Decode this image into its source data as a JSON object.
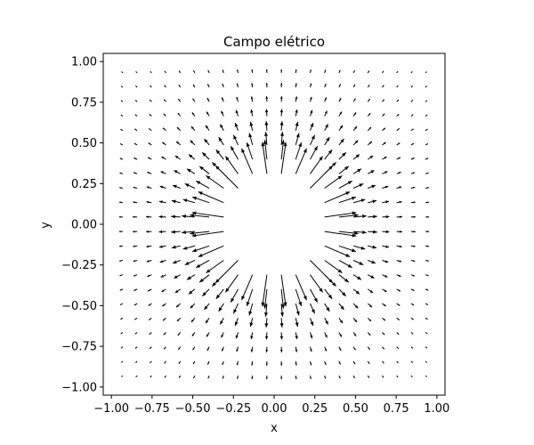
{
  "chart_data": {
    "type": "quiver",
    "title": "Campo elétrico",
    "xlabel": "x",
    "ylabel": "y",
    "xlim": [
      -1.05,
      1.05
    ],
    "ylim": [
      -1.05,
      1.05
    ],
    "grid": false,
    "legend": "none",
    "field": {
      "description_source": "point charge at origin",
      "charge_position": [
        0.0,
        0.0
      ],
      "grid_range": [
        -0.93,
        0.93
      ],
      "grid_count": 22,
      "excluded_radius": 0.27,
      "arrow_color": "#000000"
    },
    "xticks": [
      "−1.00",
      "−0.75",
      "−0.50",
      "−0.25",
      "0.00",
      "0.25",
      "0.50",
      "0.75",
      "1.00"
    ],
    "yticks": [
      "1.00",
      "0.75",
      "0.50",
      "0.25",
      "0.00",
      "−0.25",
      "−0.50",
      "−0.75",
      "−1.00"
    ],
    "xtick_values": [
      -1.0,
      -0.75,
      -0.5,
      -0.25,
      0.0,
      0.25,
      0.5,
      0.75,
      1.0
    ],
    "ytick_values": [
      1.0,
      0.75,
      0.5,
      0.25,
      0.0,
      -0.25,
      -0.5,
      -0.75,
      -1.0
    ]
  }
}
